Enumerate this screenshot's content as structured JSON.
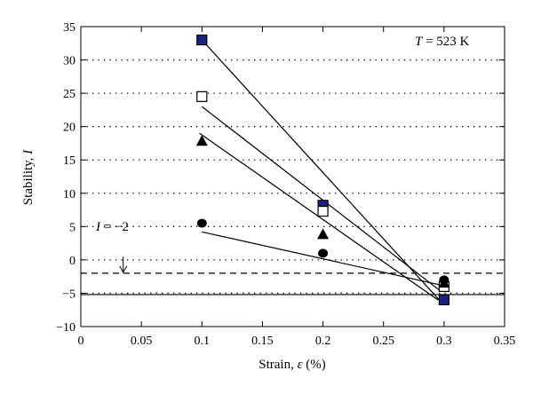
{
  "chart_data": {
    "type": "scatter",
    "xlabel_text": "Strain, ",
    "xlabel_symbol": "ε",
    "xlabel_unit": " (%)",
    "ylabel_text": "Stability, ",
    "ylabel_symbol": "I",
    "xlim": [
      0,
      0.35
    ],
    "ylim": [
      -10,
      35
    ],
    "xticks": [
      "0",
      "0.05",
      "0.1",
      "0.15",
      "0.2",
      "0.25",
      "0.3",
      "0.35"
    ],
    "yticks": [
      "−10",
      "−5",
      "0",
      "5",
      "10",
      "15",
      "20",
      "25",
      "30",
      "35"
    ],
    "grid": "horizontal-dotted",
    "series": [
      {
        "marker": "filled-square",
        "color": "#1a237e",
        "x": [
          0.1,
          0.2,
          0.3
        ],
        "y": [
          33,
          8.2,
          -6
        ],
        "fit": [
          [
            0.1,
            33
          ],
          [
            0.296,
            -6
          ]
        ]
      },
      {
        "marker": "open-square",
        "color": "#ffffff",
        "x": [
          0.1,
          0.2,
          0.3
        ],
        "y": [
          24.5,
          7.3,
          -4
        ],
        "fit": [
          [
            0.1,
            23
          ],
          [
            0.298,
            -4.8
          ]
        ]
      },
      {
        "marker": "filled-triangle",
        "color": "#000000",
        "x": [
          0.1,
          0.2,
          0.3
        ],
        "y": [
          17.8,
          3.8,
          -3.5
        ],
        "fit": [
          [
            0.098,
            19
          ],
          [
            0.295,
            -6
          ]
        ]
      },
      {
        "marker": "filled-circle",
        "color": "#000000",
        "x": [
          0.1,
          0.2,
          0.3
        ],
        "y": [
          5.5,
          1,
          -3
        ],
        "fit": [
          [
            0.1,
            4.2
          ],
          [
            0.298,
            -3.8
          ]
        ]
      }
    ],
    "reference_lines": [
      {
        "y": -2,
        "style": "dashed"
      },
      {
        "y": -5.2,
        "style": "solid"
      }
    ],
    "annotation_temp_symbol": "T",
    "annotation_temp_value": " = 523 K",
    "annotation_stability_symbol": "I",
    "annotation_stability_value": " = −2",
    "annotation_arrow": {
      "from": [
        0.035,
        0.5
      ],
      "to": [
        0.035,
        -2
      ]
    }
  }
}
